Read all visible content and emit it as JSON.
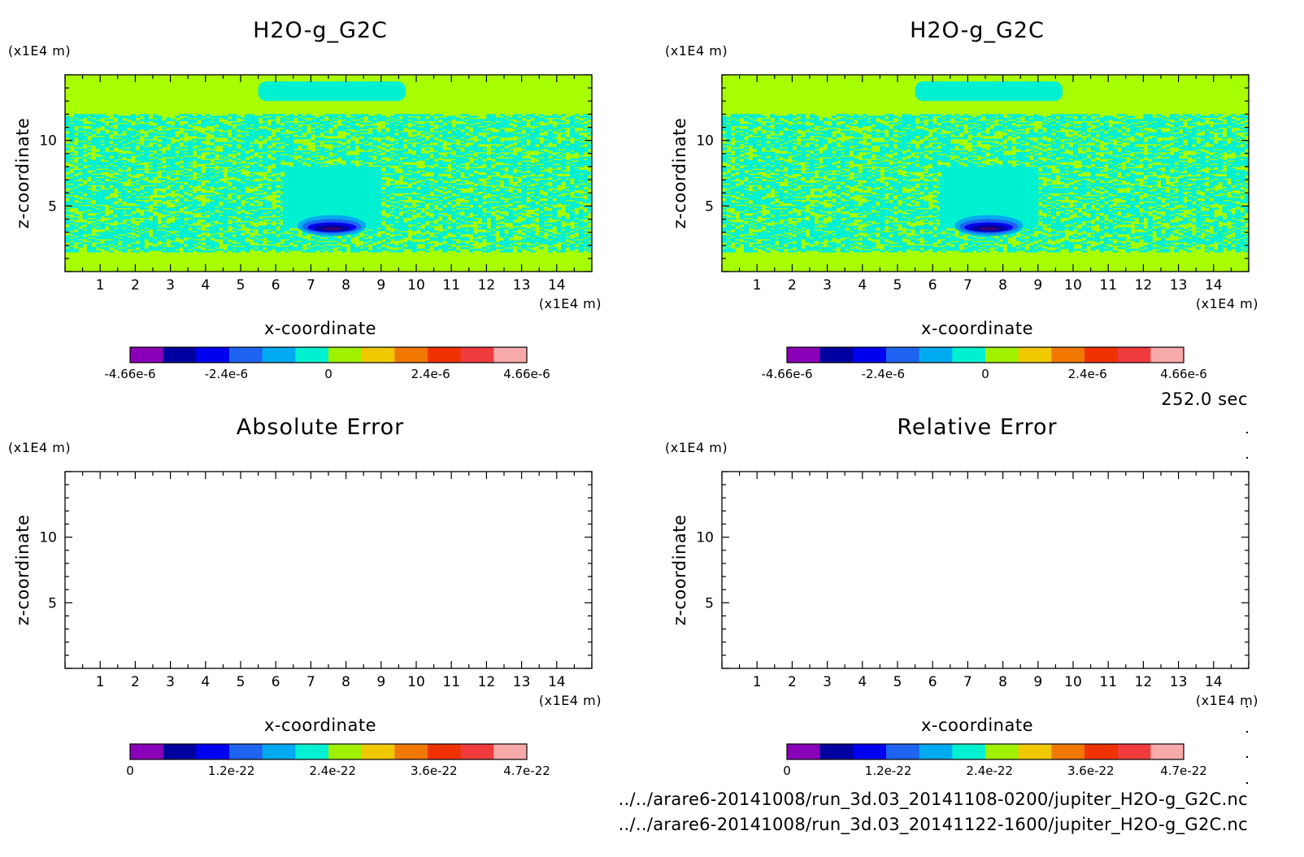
{
  "time_label": "252.0 sec",
  "files": [
    "../../arare6-20141008/run_3d.03_20141108-0200/jupiter_H2O-g_G2C.nc",
    "../../arare6-20141008/run_3d.03_20141122-1600/jupiter_H2O-g_G2C.nc"
  ],
  "colorbar_colors": [
    "#8a00b8",
    "#0000a0",
    "#0000f0",
    "#1e64f0",
    "#00aaf0",
    "#00f0d2",
    "#a0f000",
    "#f0c800",
    "#f07800",
    "#f03200",
    "#f03c3c",
    "#f8aaaa"
  ],
  "chart_data": [
    {
      "type": "heatmap",
      "title": "H2O-g_G2C",
      "xlabel": "x-coordinate",
      "ylabel": "z-coordinate",
      "x_unit": "(x1E4 m)",
      "y_unit": "(x1E4 m)",
      "xlim": [
        0,
        15
      ],
      "ylim": [
        0,
        15
      ],
      "x_ticks": [
        "1",
        "2",
        "3",
        "4",
        "5",
        "6",
        "7",
        "8",
        "9",
        "10",
        "11",
        "12",
        "13",
        "14"
      ],
      "y_ticks": [
        "5",
        "10"
      ],
      "colorbar_range": [
        -4.66e-06,
        4.66e-06
      ],
      "colorbar_labels": [
        "-4.66e-6",
        "-2.4e-6",
        "0",
        "2.4e-6",
        "4.66e-6"
      ],
      "field": {
        "background": "#a8ff00",
        "noisy_band_z": [
          1.5,
          12.0
        ],
        "noisy_colors": [
          "#a8ff00",
          "#00f0d2"
        ],
        "cap": {
          "x": [
            5.5,
            9.7
          ],
          "z": [
            13.0,
            14.5
          ],
          "color": "#00f0d2"
        },
        "bubble": {
          "x": [
            6.2,
            8.9
          ],
          "z": [
            3.3,
            8.0
          ],
          "color": "#00f0d2"
        },
        "anomaly_center": [
          7.6,
          3.5
        ]
      }
    },
    {
      "type": "heatmap",
      "title": "H2O-g_G2C",
      "xlabel": "x-coordinate",
      "ylabel": "z-coordinate",
      "x_unit": "(x1E4 m)",
      "y_unit": "(x1E4 m)",
      "xlim": [
        0,
        15
      ],
      "ylim": [
        0,
        15
      ],
      "x_ticks": [
        "1",
        "2",
        "3",
        "4",
        "5",
        "6",
        "7",
        "8",
        "9",
        "10",
        "11",
        "12",
        "13",
        "14"
      ],
      "y_ticks": [
        "5",
        "10"
      ],
      "colorbar_range": [
        -4.66e-06,
        4.66e-06
      ],
      "colorbar_labels": [
        "-4.66e-6",
        "-2.4e-6",
        "0",
        "2.4e-6",
        "4.66e-6"
      ],
      "field": {
        "background": "#a8ff00",
        "noisy_band_z": [
          1.5,
          12.0
        ],
        "noisy_colors": [
          "#a8ff00",
          "#00f0d2"
        ],
        "cap": {
          "x": [
            5.5,
            9.7
          ],
          "z": [
            13.0,
            14.5
          ],
          "color": "#00f0d2"
        },
        "bubble": {
          "x": [
            6.2,
            8.9
          ],
          "z": [
            3.3,
            8.0
          ],
          "color": "#00f0d2"
        },
        "anomaly_center": [
          7.6,
          3.5
        ]
      }
    },
    {
      "type": "heatmap",
      "title": "Absolute Error",
      "xlabel": "x-coordinate",
      "ylabel": "z-coordinate",
      "x_unit": "(x1E4 m)",
      "y_unit": "(x1E4 m)",
      "xlim": [
        0,
        15
      ],
      "ylim": [
        0,
        15
      ],
      "x_ticks": [
        "1",
        "2",
        "3",
        "4",
        "5",
        "6",
        "7",
        "8",
        "9",
        "10",
        "11",
        "12",
        "13",
        "14"
      ],
      "y_ticks": [
        "5",
        "10"
      ],
      "colorbar_range": [
        0,
        4.7e-22
      ],
      "colorbar_labels": [
        "0",
        "1.2e-22",
        "2.4e-22",
        "3.6e-22",
        "4.7e-22"
      ],
      "field": null
    },
    {
      "type": "heatmap",
      "title": "Relative Error",
      "xlabel": "x-coordinate",
      "ylabel": "z-coordinate",
      "x_unit": "(x1E4 m)",
      "y_unit": "(x1E4 m)",
      "xlim": [
        0,
        15
      ],
      "ylim": [
        0,
        15
      ],
      "x_ticks": [
        "1",
        "2",
        "3",
        "4",
        "5",
        "6",
        "7",
        "8",
        "9",
        "10",
        "11",
        "12",
        "13",
        "14"
      ],
      "y_ticks": [
        "5",
        "10"
      ],
      "colorbar_range": [
        0,
        4.7e-22
      ],
      "colorbar_labels": [
        "0",
        "1.2e-22",
        "2.4e-22",
        "3.6e-22",
        "4.7e-22"
      ],
      "field": null
    }
  ]
}
